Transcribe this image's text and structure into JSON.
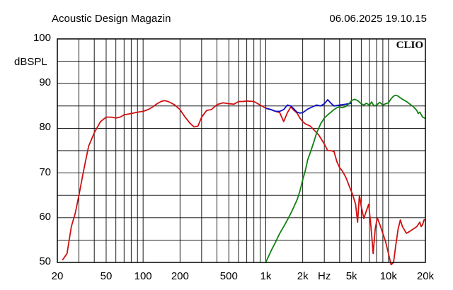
{
  "header": {
    "left": "Acoustic Design Magazin",
    "right": "06.06.2025 19.10.15"
  },
  "brand": "CLIO",
  "chart_data": {
    "type": "line",
    "title": "",
    "ylabel": "dBSPL",
    "xlabel": "Hz",
    "xscale": "log",
    "xlim": [
      20,
      20000
    ],
    "ylim": [
      50,
      100
    ],
    "grid": true,
    "y_ticks": [
      50,
      60,
      70,
      80,
      90,
      100
    ],
    "x_ticks": [
      {
        "value": 20,
        "label": "20"
      },
      {
        "value": 50,
        "label": "50"
      },
      {
        "value": 100,
        "label": "100"
      },
      {
        "value": 200,
        "label": "200"
      },
      {
        "value": 500,
        "label": "500"
      },
      {
        "value": 1000,
        "label": "1k"
      },
      {
        "value": 2000,
        "label": "2k"
      },
      {
        "value": 3000,
        "label": "Hz"
      },
      {
        "value": 5000,
        "label": "5k"
      },
      {
        "value": 10000,
        "label": "10k"
      },
      {
        "value": 20000,
        "label": "20k"
      }
    ],
    "series": [
      {
        "color": "#d01010",
        "points": [
          [
            22,
            50.5
          ],
          [
            24,
            52
          ],
          [
            26,
            58
          ],
          [
            28,
            61
          ],
          [
            30,
            65
          ],
          [
            33,
            71
          ],
          [
            36,
            76
          ],
          [
            40,
            79
          ],
          [
            45,
            81.5
          ],
          [
            50,
            82.5
          ],
          [
            55,
            82.5
          ],
          [
            60,
            82.3
          ],
          [
            65,
            82.5
          ],
          [
            70,
            83
          ],
          [
            80,
            83.3
          ],
          [
            90,
            83.6
          ],
          [
            100,
            83.8
          ],
          [
            110,
            84.2
          ],
          [
            120,
            84.8
          ],
          [
            130,
            85.5
          ],
          [
            140,
            86
          ],
          [
            150,
            86.2
          ],
          [
            160,
            86
          ],
          [
            180,
            85.3
          ],
          [
            200,
            84.2
          ],
          [
            220,
            82.5
          ],
          [
            240,
            81.2
          ],
          [
            260,
            80.3
          ],
          [
            280,
            80.5
          ],
          [
            300,
            82.5
          ],
          [
            330,
            84
          ],
          [
            360,
            84.2
          ],
          [
            400,
            85.3
          ],
          [
            450,
            85.7
          ],
          [
            500,
            85.5
          ],
          [
            550,
            85.4
          ],
          [
            600,
            86
          ],
          [
            650,
            86
          ],
          [
            700,
            86.1
          ],
          [
            800,
            86
          ],
          [
            900,
            85.2
          ],
          [
            1000,
            84.5
          ],
          [
            1100,
            84.2
          ],
          [
            1200,
            83.8
          ],
          [
            1300,
            83.5
          ],
          [
            1400,
            81.5
          ],
          [
            1500,
            83.5
          ],
          [
            1600,
            84.8
          ],
          [
            1700,
            84
          ],
          [
            1800,
            83.4
          ],
          [
            1900,
            82.3
          ],
          [
            2000,
            81.5
          ],
          [
            2100,
            81
          ],
          [
            2300,
            80.5
          ],
          [
            2500,
            79.5
          ],
          [
            2700,
            78.5
          ],
          [
            3000,
            76.5
          ],
          [
            3200,
            75
          ],
          [
            3400,
            75
          ],
          [
            3600,
            74.8
          ],
          [
            3800,
            72.5
          ],
          [
            4000,
            71.2
          ],
          [
            4200,
            70.5
          ],
          [
            4500,
            69
          ],
          [
            4800,
            67
          ],
          [
            5100,
            65.2
          ],
          [
            5400,
            63
          ],
          [
            5600,
            59
          ],
          [
            5800,
            65
          ],
          [
            6000,
            62.5
          ],
          [
            6300,
            59.8
          ],
          [
            6600,
            61.5
          ],
          [
            6900,
            63
          ],
          [
            7200,
            58
          ],
          [
            7500,
            52
          ],
          [
            7800,
            57.5
          ],
          [
            8100,
            60
          ],
          [
            8500,
            58.5
          ],
          [
            9000,
            56.5
          ],
          [
            9500,
            54.5
          ],
          [
            10000,
            52
          ],
          [
            10500,
            49.5
          ],
          [
            11000,
            50
          ],
          [
            11500,
            54
          ],
          [
            12000,
            57.5
          ],
          [
            12500,
            59.5
          ],
          [
            13000,
            58
          ],
          [
            14000,
            56.5
          ],
          [
            15000,
            57
          ],
          [
            16000,
            57.5
          ],
          [
            17000,
            58
          ],
          [
            18000,
            59
          ],
          [
            18500,
            58
          ],
          [
            19000,
            58.5
          ],
          [
            19500,
            59.5
          ],
          [
            20000,
            59.6
          ]
        ]
      },
      {
        "color": "#1010c0",
        "points": [
          [
            1000,
            84.5
          ],
          [
            1100,
            84.2
          ],
          [
            1200,
            83.8
          ],
          [
            1300,
            83.8
          ],
          [
            1400,
            84.2
          ],
          [
            1500,
            85.2
          ],
          [
            1600,
            85
          ],
          [
            1700,
            84.3
          ],
          [
            1800,
            83.6
          ],
          [
            1900,
            83.4
          ],
          [
            2000,
            83.5
          ],
          [
            2200,
            84.3
          ],
          [
            2400,
            84.8
          ],
          [
            2600,
            85.2
          ],
          [
            2800,
            85
          ],
          [
            3000,
            85.5
          ],
          [
            3200,
            86.4
          ],
          [
            3400,
            85.6
          ],
          [
            3600,
            85
          ],
          [
            4000,
            85.2
          ],
          [
            4500,
            85.4
          ],
          [
            5000,
            85.6
          ]
        ]
      },
      {
        "color": "#108010",
        "points": [
          [
            1000,
            50
          ],
          [
            1100,
            52.5
          ],
          [
            1200,
            54.5
          ],
          [
            1300,
            56.5
          ],
          [
            1400,
            58
          ],
          [
            1500,
            59.5
          ],
          [
            1600,
            61
          ],
          [
            1700,
            62.5
          ],
          [
            1800,
            64
          ],
          [
            1900,
            66
          ],
          [
            2000,
            68.5
          ],
          [
            2100,
            70.5
          ],
          [
            2200,
            73
          ],
          [
            2300,
            74.5
          ],
          [
            2400,
            76
          ],
          [
            2500,
            77.5
          ],
          [
            2600,
            79
          ],
          [
            2700,
            80
          ],
          [
            2800,
            81
          ],
          [
            3000,
            82.3
          ],
          [
            3200,
            83
          ],
          [
            3400,
            83.6
          ],
          [
            3600,
            84.2
          ],
          [
            3800,
            84.6
          ],
          [
            4000,
            84.8
          ],
          [
            4200,
            84.6
          ],
          [
            4500,
            84.9
          ],
          [
            4800,
            85.6
          ],
          [
            5000,
            86.2
          ],
          [
            5300,
            86.5
          ],
          [
            5600,
            86.2
          ],
          [
            6000,
            85.5
          ],
          [
            6300,
            85.2
          ],
          [
            6600,
            85.6
          ],
          [
            7000,
            85.2
          ],
          [
            7300,
            85.9
          ],
          [
            7600,
            85
          ],
          [
            8000,
            85.2
          ],
          [
            8500,
            85.8
          ],
          [
            9000,
            85.2
          ],
          [
            9500,
            85.5
          ],
          [
            10000,
            85.7
          ],
          [
            10500,
            86.6
          ],
          [
            11000,
            87.2
          ],
          [
            11500,
            87.4
          ],
          [
            12000,
            87.2
          ],
          [
            12500,
            86.8
          ],
          [
            13000,
            86.5
          ],
          [
            14000,
            86
          ],
          [
            15000,
            85.4
          ],
          [
            16000,
            84.8
          ],
          [
            17000,
            84
          ],
          [
            17500,
            83.3
          ],
          [
            18000,
            83.6
          ],
          [
            19000,
            82.5
          ],
          [
            20000,
            82.2
          ]
        ]
      }
    ]
  }
}
